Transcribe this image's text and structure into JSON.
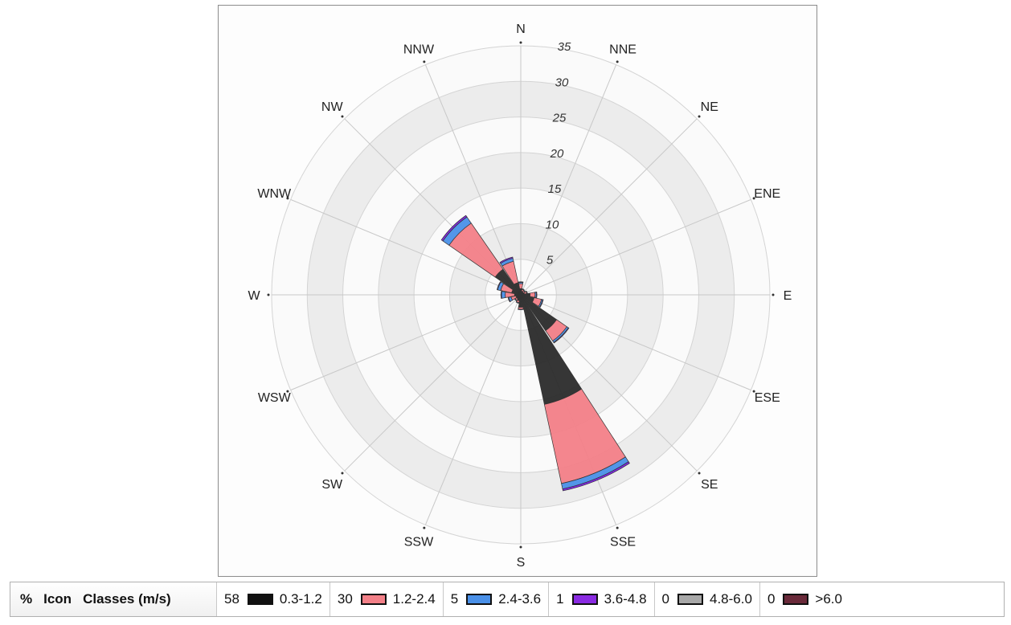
{
  "chart_data": {
    "type": "wind-rose",
    "directions": [
      "N",
      "NNE",
      "NE",
      "ENE",
      "E",
      "ESE",
      "SE",
      "SSE",
      "S",
      "SSW",
      "SW",
      "WSW",
      "W",
      "WNW",
      "NW",
      "NNW"
    ],
    "radial_ticks": [
      "5",
      "10",
      "15",
      "20",
      "25",
      "30",
      "35"
    ],
    "rmax": 40,
    "series": [
      {
        "name": "0.3-1.2",
        "color": "#2b2b2b",
        "values": [
          1.0,
          0.6,
          0.5,
          0.6,
          1.5,
          2.2,
          7.0,
          18.0,
          2.0,
          1.0,
          0.8,
          0.8,
          1.0,
          1.5,
          5.0,
          2.0
        ]
      },
      {
        "name": "1.2-2.4",
        "color": "#f38088",
        "values": [
          0.8,
          0.3,
          0.3,
          0.4,
          0.8,
          1.2,
          2.0,
          13.0,
          0.3,
          0.3,
          0.3,
          0.8,
          1.5,
          1.8,
          9.0,
          3.5
        ]
      },
      {
        "name": "2.4-3.6",
        "color": "#4a90e8",
        "values": [
          0.2,
          0.1,
          0.1,
          0.1,
          0.2,
          0.2,
          0.3,
          0.9,
          0.1,
          0.1,
          0.1,
          0.4,
          0.6,
          0.5,
          1.2,
          0.5
        ]
      },
      {
        "name": "3.6-4.8",
        "color": "#7a1fe0",
        "values": [
          0.1,
          0.0,
          0.0,
          0.0,
          0.1,
          0.1,
          0.1,
          0.3,
          0.0,
          0.0,
          0.0,
          0.1,
          0.1,
          0.1,
          0.3,
          0.2
        ]
      },
      {
        "name": "4.8-6.0",
        "color": "#a0a0a0",
        "values": [
          0,
          0,
          0,
          0,
          0,
          0,
          0,
          0,
          0,
          0,
          0,
          0,
          0,
          0,
          0,
          0
        ]
      },
      {
        "name": ">6.0",
        "color": "#5a1a2a",
        "values": [
          0,
          0,
          0,
          0,
          0,
          0,
          0,
          0,
          0,
          0,
          0,
          0,
          0,
          0,
          0,
          0
        ]
      }
    ]
  },
  "legend": {
    "percent_header": "%",
    "icon_header": "Icon",
    "classes_header": "Classes (m/s)",
    "items": [
      {
        "percent": "58",
        "color": "#111111",
        "label": "0.3-1.2"
      },
      {
        "percent": "30",
        "color": "#f38088",
        "label": "1.2-2.4"
      },
      {
        "percent": "5",
        "color": "#4a90e8",
        "label": "2.4-3.6"
      },
      {
        "percent": "1",
        "color": "#8a2be2",
        "label": "3.6-4.8"
      },
      {
        "percent": "0",
        "color": "#a8a8a8",
        "label": "4.8-6.0"
      },
      {
        "percent": "0",
        "color": "#6a2a3a",
        "label": ">6.0"
      }
    ]
  }
}
